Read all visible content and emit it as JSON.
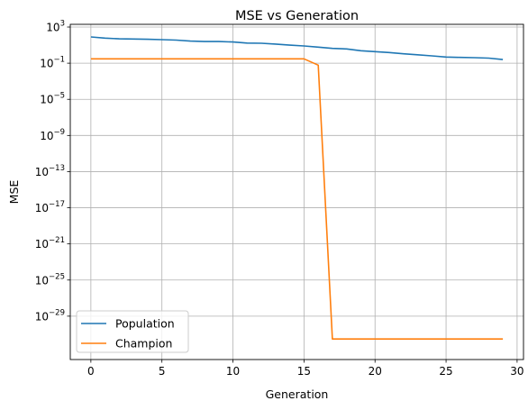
{
  "chart_data": {
    "type": "line",
    "title": "MSE vs Generation",
    "xlabel": "Generation",
    "ylabel": "MSE",
    "xlim": [
      -1.45,
      30.45
    ],
    "ylim_exp": [
      -33.8,
      3.3
    ],
    "yscale": "log",
    "x_ticks": [
      0,
      5,
      10,
      15,
      20,
      25,
      30
    ],
    "y_tick_exponents": [
      3,
      -1,
      -5,
      -9,
      -13,
      -17,
      -21,
      -25,
      -29
    ],
    "grid": true,
    "legend_position": "lower-left",
    "series": [
      {
        "name": "Population",
        "color": "#1f77b4",
        "x": [
          0,
          1,
          2,
          3,
          4,
          5,
          6,
          7,
          8,
          9,
          10,
          11,
          12,
          13,
          14,
          15,
          16,
          17,
          18,
          19,
          20,
          21,
          22,
          23,
          24,
          25,
          26,
          27,
          28,
          29
        ],
        "y": [
          80,
          60,
          50,
          47,
          44,
          40,
          36,
          28,
          25,
          25,
          22,
          17,
          16,
          13,
          10,
          8,
          6,
          4.3,
          3.8,
          2.4,
          1.9,
          1.5,
          1.1,
          0.85,
          0.65,
          0.48,
          0.44,
          0.41,
          0.36,
          0.25
        ]
      },
      {
        "name": "Champion",
        "color": "#ff7f0e",
        "x": [
          0,
          1,
          2,
          3,
          4,
          5,
          6,
          7,
          8,
          9,
          10,
          11,
          12,
          13,
          14,
          15,
          16,
          17,
          18,
          19,
          20,
          21,
          22,
          23,
          24,
          25,
          26,
          27,
          28,
          29
        ],
        "y": [
          0.3,
          0.3,
          0.3,
          0.3,
          0.3,
          0.3,
          0.3,
          0.3,
          0.3,
          0.3,
          0.3,
          0.3,
          0.3,
          0.3,
          0.3,
          0.3,
          0.06,
          3e-32,
          3e-32,
          3e-32,
          3e-32,
          3e-32,
          3e-32,
          3e-32,
          3e-32,
          3e-32,
          3e-32,
          3e-32,
          3e-32,
          3e-32
        ]
      }
    ]
  }
}
